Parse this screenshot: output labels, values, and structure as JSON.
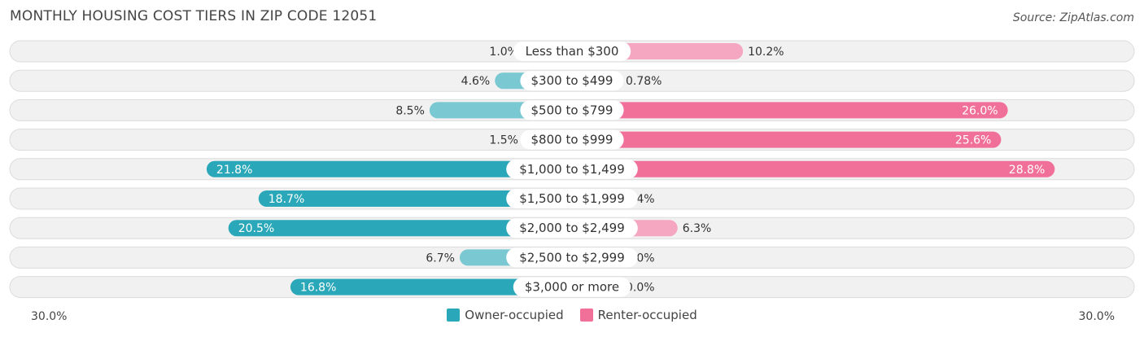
{
  "header": {
    "title": "MONTHLY HOUSING COST TIERS IN ZIP CODE 12051",
    "source": "Source: ZipAtlas.com"
  },
  "colors": {
    "owner_strong": "#2aa7b8",
    "owner_light": "#79c8d2",
    "renter_strong": "#f0709a",
    "renter_light": "#f5a6c0"
  },
  "chart_data": {
    "type": "bar",
    "orientation": "horizontal-diverging",
    "categories": [
      "Less than $300",
      "$300 to $499",
      "$500 to $799",
      "$800 to $999",
      "$1,000 to $1,499",
      "$1,500 to $1,999",
      "$2,000 to $2,499",
      "$2,500 to $2,999",
      "$3,000 or more"
    ],
    "series": [
      {
        "name": "Owner-occupied",
        "values": [
          1.0,
          4.6,
          8.5,
          1.5,
          21.8,
          18.7,
          20.5,
          6.7,
          16.8
        ],
        "labels": [
          "1.0%",
          "4.6%",
          "8.5%",
          "1.5%",
          "21.8%",
          "18.7%",
          "20.5%",
          "6.7%",
          "16.8%"
        ]
      },
      {
        "name": "Renter-occupied",
        "values": [
          10.2,
          0.78,
          26.0,
          25.6,
          28.8,
          2.4,
          6.3,
          0.0,
          0.0
        ],
        "labels": [
          "10.2%",
          "0.78%",
          "26.0%",
          "25.6%",
          "28.8%",
          "2.4%",
          "6.3%",
          "0.0%",
          "0.0%"
        ]
      }
    ],
    "xlim": [
      -30,
      30
    ],
    "axis_labels": {
      "left": "30.0%",
      "right": "30.0%"
    },
    "legend_position": "bottom-center"
  }
}
